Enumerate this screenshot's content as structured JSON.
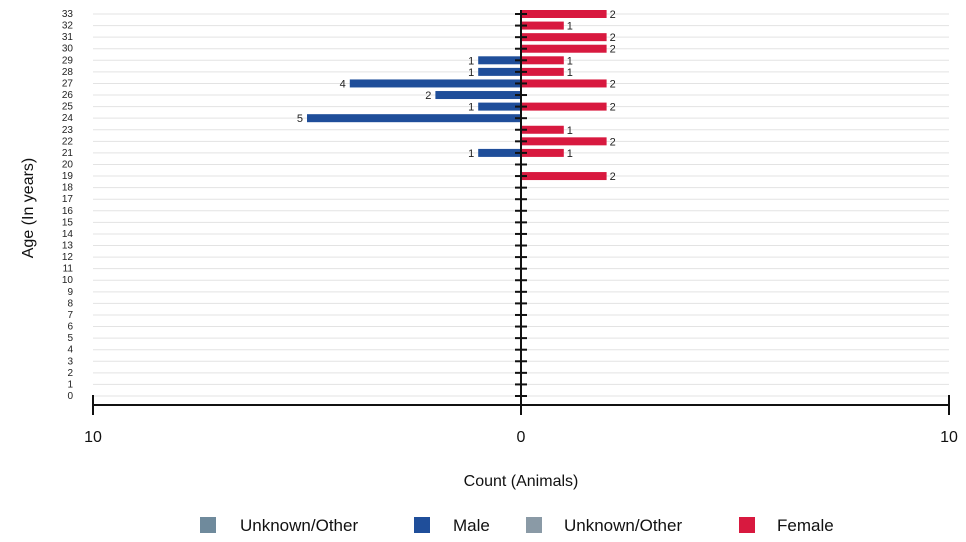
{
  "chart_data": {
    "type": "bar",
    "orientation": "horizontal-population-pyramid",
    "ylabel": "Age (In years)",
    "xlabel": "Count (Animals)",
    "x_tick_labels": [
      "10",
      "0",
      "10"
    ],
    "xlim": [
      -10,
      10
    ],
    "categories": [
      "0",
      "1",
      "2",
      "3",
      "4",
      "5",
      "6",
      "7",
      "8",
      "9",
      "10",
      "11",
      "12",
      "13",
      "14",
      "15",
      "16",
      "17",
      "18",
      "19",
      "20",
      "21",
      "22",
      "23",
      "24",
      "25",
      "26",
      "27",
      "28",
      "29",
      "30",
      "31",
      "32",
      "33"
    ],
    "series": [
      {
        "name": "Unknown/Other",
        "side": "left",
        "color": "#6f8a9c",
        "values": [
          0,
          0,
          0,
          0,
          0,
          0,
          0,
          0,
          0,
          0,
          0,
          0,
          0,
          0,
          0,
          0,
          0,
          0,
          0,
          0,
          0,
          0,
          0,
          0,
          0,
          0,
          0,
          0,
          0,
          0,
          0,
          0,
          0,
          0
        ]
      },
      {
        "name": "Male",
        "side": "left",
        "color": "#1f4e9a",
        "values": [
          0,
          0,
          0,
          0,
          0,
          0,
          0,
          0,
          0,
          0,
          0,
          0,
          0,
          0,
          0,
          0,
          0,
          0,
          0,
          0,
          0,
          1,
          0,
          0,
          5,
          1,
          2,
          4,
          1,
          1,
          0,
          0,
          0,
          0
        ]
      },
      {
        "name": "Unknown/Other",
        "side": "right",
        "color": "#8a9aa6",
        "values": [
          0,
          0,
          0,
          0,
          0,
          0,
          0,
          0,
          0,
          0,
          0,
          0,
          0,
          0,
          0,
          0,
          0,
          0,
          0,
          0,
          0,
          0,
          0,
          0,
          0,
          0,
          0,
          0,
          0,
          0,
          0,
          0,
          0,
          0
        ]
      },
      {
        "name": "Female",
        "side": "right",
        "color": "#d8193f",
        "values": [
          0,
          0,
          0,
          0,
          0,
          0,
          0,
          0,
          0,
          0,
          0,
          0,
          0,
          0,
          0,
          0,
          0,
          0,
          0,
          2,
          0,
          1,
          2,
          1,
          0,
          2,
          0,
          2,
          1,
          1,
          2,
          2,
          1,
          2
        ]
      }
    ],
    "grid": true,
    "legend_position": "bottom"
  }
}
